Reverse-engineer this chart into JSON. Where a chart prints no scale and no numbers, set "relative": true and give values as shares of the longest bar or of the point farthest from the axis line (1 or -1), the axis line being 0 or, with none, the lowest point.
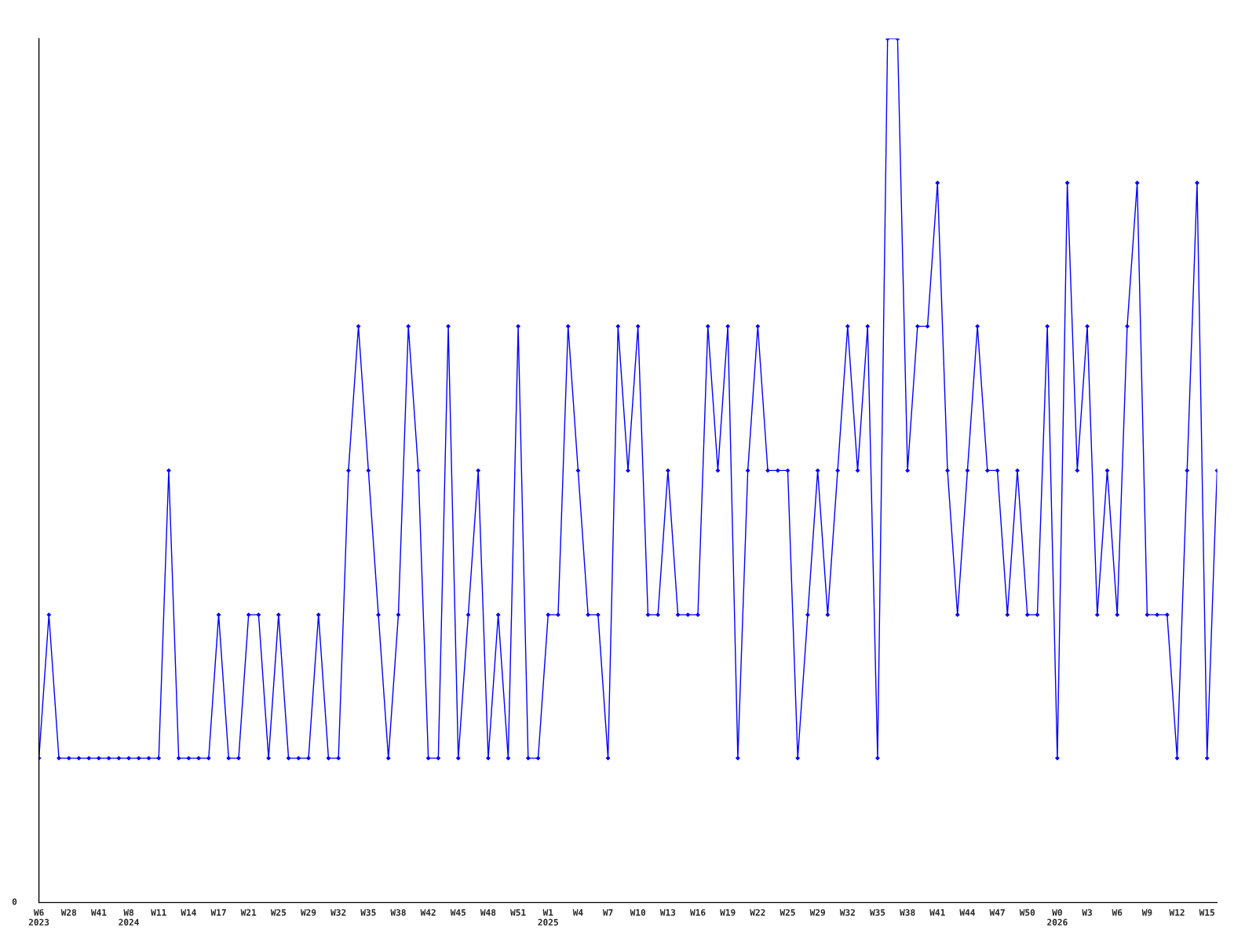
{
  "chart_data": {
    "type": "line",
    "relative": true,
    "marker": "diamond",
    "line_style": "solid",
    "annotations": [
      "0"
    ],
    "categories": [
      "W6\n2023",
      null,
      null,
      "W28",
      null,
      null,
      "W41",
      null,
      null,
      "W8\n2024",
      null,
      null,
      "W11",
      null,
      null,
      "W14",
      null,
      null,
      "W17",
      null,
      null,
      "W21",
      null,
      null,
      "W25",
      null,
      null,
      "W29",
      null,
      null,
      "W32",
      null,
      null,
      "W35",
      null,
      null,
      "W38",
      null,
      null,
      "W42",
      null,
      null,
      "W45",
      null,
      null,
      "W48",
      null,
      null,
      "W51",
      null,
      null,
      "W1\n2025",
      null,
      null,
      "W4",
      null,
      null,
      "W7",
      null,
      null,
      "W10",
      null,
      null,
      "W13",
      null,
      null,
      "W16",
      null,
      null,
      "W19",
      null,
      null,
      "W22",
      null,
      null,
      "W25",
      null,
      null,
      "W29",
      null,
      null,
      "W32",
      null,
      null,
      "W35",
      null,
      null,
      "W38",
      null,
      null,
      "W41",
      null,
      null,
      "W44",
      null,
      null,
      "W47",
      null,
      null,
      "W50",
      null,
      null,
      "W0\n2026",
      null,
      null,
      "W3",
      null,
      null,
      "W6",
      null,
      null,
      "W9",
      null,
      null,
      "W12",
      null,
      null,
      "W15",
      null
    ],
    "series": [
      {
        "color": "#0000ff",
        "values": [
          0.167,
          0.333,
          0.167,
          0.167,
          0.167,
          0.167,
          0.167,
          0.167,
          0.167,
          0.167,
          0.167,
          0.167,
          0.167,
          0.5,
          0.167,
          0.167,
          0.167,
          0.167,
          0.333,
          0.167,
          0.167,
          0.333,
          0.333,
          0.167,
          0.333,
          0.167,
          0.167,
          0.167,
          0.333,
          0.167,
          0.167,
          0.5,
          0.667,
          0.5,
          0.333,
          0.167,
          0.333,
          0.667,
          0.5,
          0.167,
          0.167,
          0.667,
          0.167,
          0.333,
          0.5,
          0.167,
          0.333,
          0.167,
          0.667,
          0.167,
          0.167,
          0.333,
          0.333,
          0.667,
          0.5,
          0.333,
          0.333,
          0.167,
          0.667,
          0.5,
          0.667,
          0.333,
          0.333,
          0.5,
          0.333,
          0.333,
          0.333,
          0.667,
          0.5,
          0.667,
          0.167,
          0.5,
          0.667,
          0.5,
          0.5,
          0.5,
          0.167,
          0.333,
          0.5,
          0.333,
          0.5,
          0.667,
          0.5,
          0.667,
          0.167,
          1,
          1,
          0.5,
          0.667,
          0.667,
          0.833,
          0.5,
          0.333,
          0.5,
          0.667,
          0.5,
          0.5,
          0.333,
          0.5,
          0.333,
          0.333,
          0.667,
          0.167,
          0.833,
          0.5,
          0.667,
          0.333,
          0.5,
          0.333,
          0.667,
          0.833,
          0.333,
          0.333,
          0.333,
          0.167,
          0.5,
          0.833,
          0.167,
          0.5
        ]
      }
    ]
  }
}
